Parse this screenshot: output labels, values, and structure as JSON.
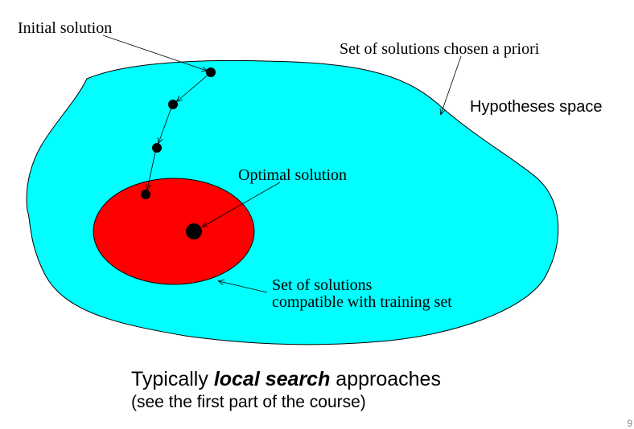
{
  "diagram": {
    "labels": {
      "initial_solution": "Initial solution",
      "set_a_priori": "Set of solutions chosen a priori",
      "hypotheses_space": "Hypotheses space",
      "optimal_solution": "Optimal solution",
      "compatible_line1": "Set of solutions",
      "compatible_line2": "compatible with training set"
    },
    "colors": {
      "hypothesis_space_fill": "#00FFFF",
      "compatible_set_fill": "#FF0000",
      "points": "#000000"
    }
  },
  "caption": {
    "line1_prefix": "Typically ",
    "line1_emphasis": "local search",
    "line1_suffix": " approaches",
    "line2": "(see the first part of the course)"
  },
  "page_number": "9"
}
